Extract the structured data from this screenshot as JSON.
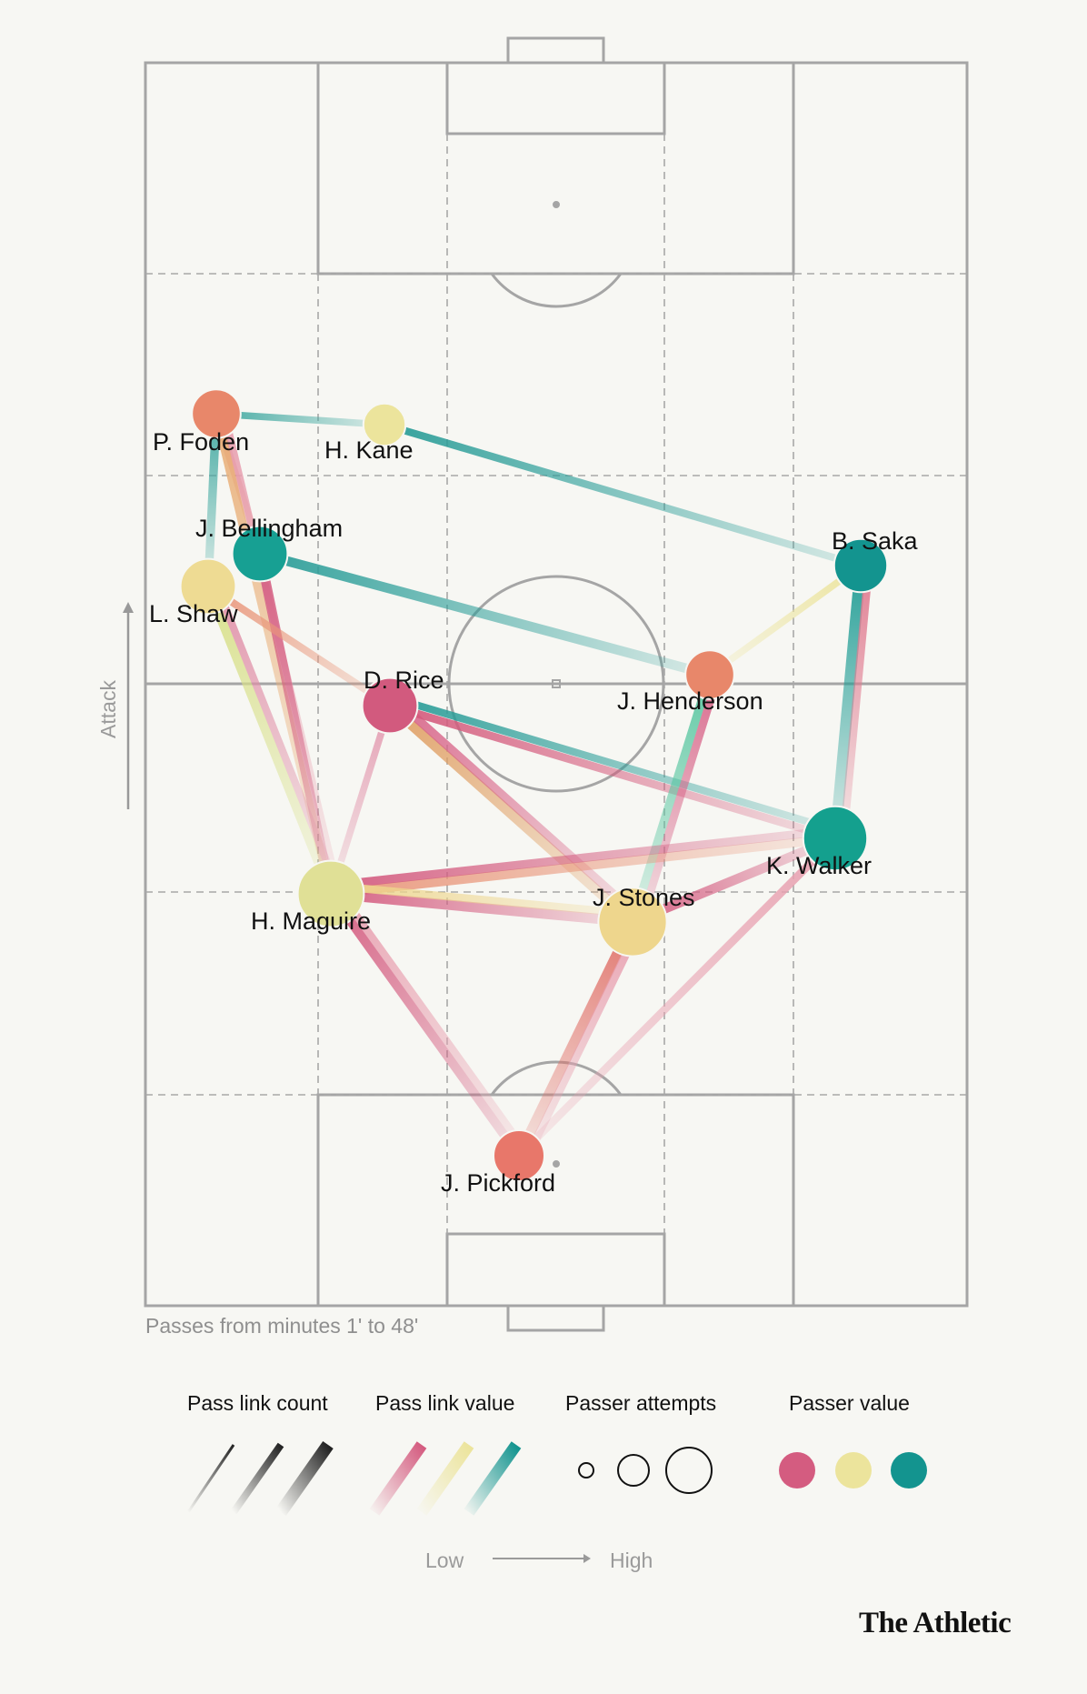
{
  "diagram": {
    "players": [
      {
        "id": "foden",
        "label": "P. Foden",
        "color": "#e8876a",
        "size": 0.45
      },
      {
        "id": "kane",
        "label": "H. Kane",
        "color": "#ece49c",
        "size": 0.3
      },
      {
        "id": "bellingham",
        "label": "J. Bellingham",
        "color": "#17a093",
        "size": 0.6
      },
      {
        "id": "shaw",
        "label": "L. Shaw",
        "color": "#eedb93",
        "size": 0.6
      },
      {
        "id": "saka",
        "label": "B. Saka",
        "color": "#13948f",
        "size": 0.55
      },
      {
        "id": "rice",
        "label": "D. Rice",
        "color": "#d25a7e",
        "size": 0.6
      },
      {
        "id": "henderson",
        "label": "J. Henderson",
        "color": "#e8876a",
        "size": 0.45
      },
      {
        "id": "walker",
        "label": "K. Walker",
        "color": "#14a08e",
        "size": 0.8
      },
      {
        "id": "maguire",
        "label": "H. Maguire",
        "color": "#e0e096",
        "size": 0.85
      },
      {
        "id": "stones",
        "label": "J. Stones",
        "color": "#eed68d",
        "size": 0.9
      },
      {
        "id": "pickford",
        "label": "J. Pickford",
        "color": "#e8776a",
        "size": 0.5
      }
    ],
    "links": [
      {
        "from": "foden",
        "to": "kane",
        "color": "#3fa8a0",
        "count": 0.3
      },
      {
        "from": "kane",
        "to": "saka",
        "color": "#2a9d98",
        "count": 0.35
      },
      {
        "from": "bellingham",
        "to": "henderson",
        "color": "#2a9d98",
        "count": 0.55
      },
      {
        "from": "saka",
        "to": "henderson",
        "color": "#ece49c",
        "count": 0.3
      },
      {
        "from": "foden",
        "to": "shaw",
        "color": "#3fa8a0",
        "count": 0.45
      },
      {
        "from": "foden",
        "to": "bellingham",
        "color": "#e17a70",
        "count": 0.4
      },
      {
        "from": "foden",
        "to": "maguire",
        "color": "#e9b07a",
        "count": 0.45
      },
      {
        "from": "foden",
        "to": "maguire",
        "color": "#e8a0b0",
        "count": 0.3
      },
      {
        "from": "bellingham",
        "to": "maguire",
        "color": "#d45c80",
        "count": 0.55
      },
      {
        "from": "shaw",
        "to": "maguire",
        "color": "#d8e08a",
        "count": 0.5
      },
      {
        "from": "shaw",
        "to": "maguire",
        "color": "#e090a8",
        "count": 0.35
      },
      {
        "from": "shaw",
        "to": "rice",
        "color": "#e9967a",
        "count": 0.35
      },
      {
        "from": "rice",
        "to": "maguire",
        "color": "#e39ab0",
        "count": 0.3
      },
      {
        "from": "rice",
        "to": "stones",
        "color": "#e0a065",
        "count": 0.6
      },
      {
        "from": "rice",
        "to": "stones",
        "color": "#d8668a",
        "count": 0.45
      },
      {
        "from": "rice",
        "to": "walker",
        "color": "#d45a7c",
        "count": 0.4
      },
      {
        "from": "rice",
        "to": "walker",
        "color": "#2a9d98",
        "count": 0.35
      },
      {
        "from": "henderson",
        "to": "stones",
        "color": "#57c6a0",
        "count": 0.45
      },
      {
        "from": "henderson",
        "to": "stones",
        "color": "#d8668a",
        "count": 0.4
      },
      {
        "from": "saka",
        "to": "walker",
        "color": "#1e9c94",
        "count": 0.7
      },
      {
        "from": "saka",
        "to": "walker",
        "color": "#e07b90",
        "count": 0.4
      },
      {
        "from": "maguire",
        "to": "walker",
        "color": "#e9967a",
        "count": 0.5
      },
      {
        "from": "maguire",
        "to": "walker",
        "color": "#d45c80",
        "count": 0.45
      },
      {
        "from": "maguire",
        "to": "stones",
        "color": "#d45c80",
        "count": 0.6
      },
      {
        "from": "maguire",
        "to": "stones",
        "color": "#eed68d",
        "count": 0.4
      },
      {
        "from": "stones",
        "to": "walker",
        "color": "#d45c80",
        "count": 0.55
      },
      {
        "from": "maguire",
        "to": "pickford",
        "color": "#d45c80",
        "count": 0.5
      },
      {
        "from": "maguire",
        "to": "pickford",
        "color": "#e8a0b0",
        "count": 0.35
      },
      {
        "from": "stones",
        "to": "pickford",
        "color": "#e07068",
        "count": 0.6
      },
      {
        "from": "stones",
        "to": "pickford",
        "color": "#e8a0b0",
        "count": 0.4
      },
      {
        "from": "walker",
        "to": "pickford",
        "color": "#e8a0b0",
        "count": 0.4
      }
    ]
  },
  "note": "Passes from minutes 1' to 48'",
  "attack_label": "Attack",
  "legend": {
    "pass_link_count": "Pass link count",
    "pass_link_value": "Pass link value",
    "passer_attempts": "Passer attempts",
    "passer_value": "Passer value",
    "low": "Low",
    "high": "High",
    "value_colors": [
      "#d45c80",
      "#ece49c",
      "#13948f"
    ]
  },
  "brand": "The Athletic",
  "colors": {
    "background": "#f7f7f3",
    "pitch_line": "#a5a5a5",
    "low_value": "#d45c80",
    "mid_value": "#ece49c",
    "high_value": "#13948f"
  }
}
